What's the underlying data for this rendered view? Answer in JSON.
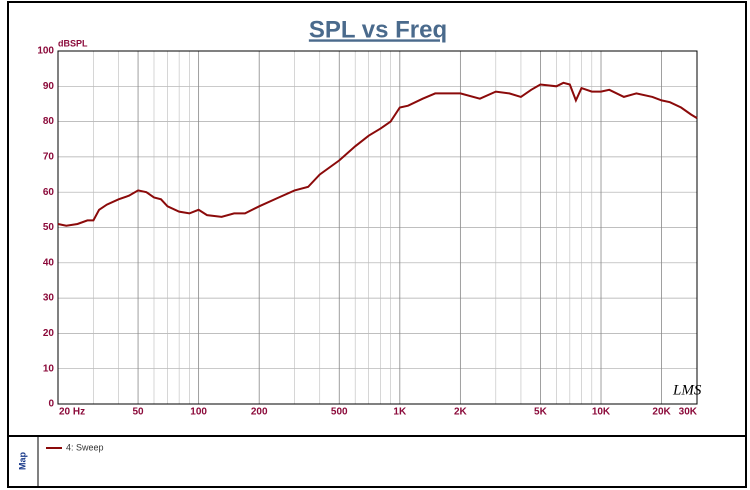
{
  "chart_data": {
    "type": "line",
    "title": "SPL vs Freq",
    "y_label": "dBSPL",
    "watermark": "LMS",
    "side_label": "Map",
    "log_x": true,
    "grid": true,
    "xlim": [
      20,
      30000
    ],
    "ylim": [
      0,
      100
    ],
    "xticks": [
      {
        "value": 20,
        "label": "20 Hz"
      },
      50,
      100,
      200,
      500,
      {
        "value": 1000,
        "label": "1K"
      },
      {
        "value": 2000,
        "label": "2K"
      },
      {
        "value": 5000,
        "label": "5K"
      },
      {
        "value": 10000,
        "label": "10K"
      },
      {
        "value": 20000,
        "label": "20K"
      },
      {
        "value": 30000,
        "label": "30K"
      }
    ],
    "xminorticks": [
      30,
      40,
      60,
      70,
      80,
      90,
      300,
      400,
      600,
      700,
      800,
      900,
      3000,
      4000,
      6000,
      7000,
      8000,
      9000
    ],
    "yticks": [
      0,
      10,
      20,
      30,
      40,
      50,
      60,
      70,
      80,
      90,
      100
    ],
    "x": [
      20,
      22,
      25,
      28,
      30,
      32,
      35,
      40,
      45,
      50,
      55,
      60,
      65,
      70,
      80,
      90,
      100,
      110,
      130,
      150,
      170,
      200,
      250,
      300,
      350,
      400,
      500,
      600,
      700,
      800,
      900,
      1000,
      1100,
      1300,
      1500,
      1800,
      2000,
      2500,
      3000,
      3500,
      4000,
      4500,
      5000,
      6000,
      6500,
      7000,
      7500,
      8000,
      9000,
      10000,
      11000,
      13000,
      15000,
      18000,
      20000,
      22000,
      25000,
      28000,
      30000
    ],
    "series": [
      {
        "name": "4: Sweep",
        "color": "#8b0a0a",
        "values": [
          51,
          50.5,
          51,
          52,
          52,
          55,
          56.5,
          58,
          59,
          60.5,
          60,
          58.5,
          58,
          56,
          54.5,
          54,
          55,
          53.5,
          53,
          54,
          54,
          56,
          58.5,
          60.5,
          61.5,
          65,
          69,
          73,
          76,
          78,
          80,
          84,
          84.5,
          86.5,
          88,
          88,
          88,
          86.5,
          88.5,
          88,
          87,
          89,
          90.5,
          90,
          91,
          90.5,
          86,
          89.5,
          88.5,
          88.5,
          89,
          87,
          88,
          87,
          86,
          85.5,
          84,
          82,
          81
        ]
      }
    ]
  }
}
